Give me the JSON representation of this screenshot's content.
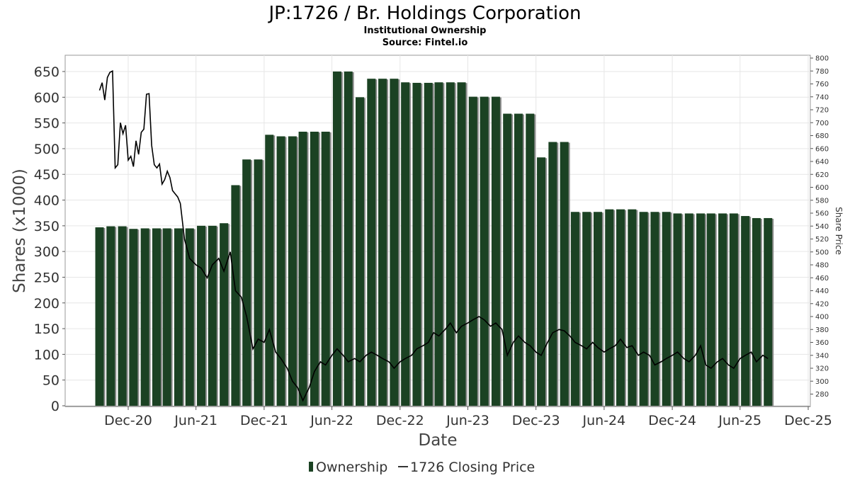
{
  "chart_data": {
    "type": "bar",
    "title": "JP:1726 / Br. Holdings Corporation",
    "subtitle": "Institutional Ownership",
    "source": "Source: Fintel.io",
    "xlabel": "Date",
    "ylabel": "Shares (x1000)",
    "y2label": "Share Price",
    "ylim": [
      0,
      650
    ],
    "y2lim": [
      260,
      800
    ],
    "grid": true,
    "legend_placement": "bottom-center",
    "yticks": [
      "0",
      "50",
      "100",
      "150",
      "200",
      "250",
      "300",
      "350",
      "400",
      "450",
      "500",
      "550",
      "600",
      "650"
    ],
    "y2ticks": [
      "280",
      "300",
      "320",
      "340",
      "360",
      "380",
      "400",
      "420",
      "440",
      "460",
      "480",
      "500",
      "520",
      "540",
      "560",
      "580",
      "600",
      "620",
      "640",
      "660",
      "680",
      "700",
      "720",
      "740",
      "760",
      "780",
      "800"
    ],
    "xticks": [
      "Dec-20",
      "Jun-21",
      "Dec-21",
      "Jun-22",
      "Dec-22",
      "Jun-23",
      "Dec-23",
      "Jun-24",
      "Dec-24",
      "Jun-25",
      "Dec-25"
    ],
    "series": [
      {
        "name": "Ownership",
        "color": "#1b4223",
        "dates": [
          "2020-09-15",
          "2020-10-15",
          "2020-11-15",
          "2020-12-15",
          "2021-01-15",
          "2021-02-15",
          "2021-03-15",
          "2021-04-15",
          "2021-05-15",
          "2021-06-15",
          "2021-07-15",
          "2021-08-15",
          "2021-09-15",
          "2021-10-15",
          "2021-11-15",
          "2021-12-15",
          "2022-01-15",
          "2022-02-15",
          "2022-03-15",
          "2022-04-15",
          "2022-05-15",
          "2022-06-15",
          "2022-07-15",
          "2022-08-15",
          "2022-09-15",
          "2022-10-15",
          "2022-11-15",
          "2022-12-15",
          "2023-01-15",
          "2023-02-15",
          "2023-03-15",
          "2023-04-15",
          "2023-05-15",
          "2023-06-15",
          "2023-07-15",
          "2023-08-15",
          "2023-09-15",
          "2023-10-15",
          "2023-11-15",
          "2023-12-15",
          "2024-01-15",
          "2024-02-15",
          "2024-03-15",
          "2024-04-15",
          "2024-05-15",
          "2024-06-15",
          "2024-07-15",
          "2024-08-15",
          "2024-09-15",
          "2024-10-15",
          "2024-11-15",
          "2024-12-15",
          "2025-01-15",
          "2025-02-15",
          "2025-03-15",
          "2025-04-15",
          "2025-05-15",
          "2025-06-15",
          "2025-07-15",
          "2025-08-15"
        ],
        "values": [
          347,
          349,
          349,
          344,
          345,
          345,
          345,
          345,
          345,
          350,
          350,
          355,
          429,
          479,
          479,
          527,
          524,
          524,
          533,
          533,
          533,
          650,
          650,
          600,
          636,
          636,
          636,
          629,
          628,
          628,
          629,
          629,
          629,
          601,
          601,
          601,
          568,
          568,
          568,
          483,
          513,
          513,
          377,
          377,
          377,
          382,
          382,
          382,
          377,
          377,
          377,
          374,
          374,
          374,
          374,
          374,
          374,
          369,
          365,
          365
        ]
      },
      {
        "name": "1726 Closing Price",
        "color": "#000000",
        "dates": [
          "2020-09-15",
          "2020-09-22",
          "2020-09-29",
          "2020-10-06",
          "2020-10-13",
          "2020-10-20",
          "2020-10-27",
          "2020-11-03",
          "2020-11-10",
          "2020-11-17",
          "2020-11-24",
          "2020-12-01",
          "2020-12-08",
          "2020-12-15",
          "2020-12-22",
          "2020-12-29",
          "2021-01-05",
          "2021-01-12",
          "2021-01-19",
          "2021-01-26",
          "2021-02-02",
          "2021-02-09",
          "2021-02-16",
          "2021-02-23",
          "2021-03-02",
          "2021-03-09",
          "2021-03-16",
          "2021-03-23",
          "2021-03-30",
          "2021-04-06",
          "2021-04-13",
          "2021-04-20",
          "2021-05-01",
          "2021-05-15",
          "2021-06-01",
          "2021-06-15",
          "2021-07-01",
          "2021-07-15",
          "2021-08-01",
          "2021-08-15",
          "2021-09-01",
          "2021-09-15",
          "2021-10-01",
          "2021-10-15",
          "2021-11-01",
          "2021-11-15",
          "2021-12-01",
          "2021-12-15",
          "2022-01-01",
          "2022-01-15",
          "2022-02-01",
          "2022-02-15",
          "2022-03-01",
          "2022-03-15",
          "2022-04-01",
          "2022-04-15",
          "2022-05-01",
          "2022-05-15",
          "2022-06-01",
          "2022-06-15",
          "2022-07-01",
          "2022-07-15",
          "2022-08-01",
          "2022-08-15",
          "2022-09-01",
          "2022-09-15",
          "2022-10-01",
          "2022-10-15",
          "2022-11-01",
          "2022-11-15",
          "2022-12-01",
          "2022-12-15",
          "2023-01-01",
          "2023-01-15",
          "2023-02-01",
          "2023-02-15",
          "2023-03-01",
          "2023-03-15",
          "2023-04-01",
          "2023-04-15",
          "2023-05-01",
          "2023-05-15",
          "2023-06-01",
          "2023-06-15",
          "2023-07-01",
          "2023-07-15",
          "2023-08-01",
          "2023-08-15",
          "2023-09-01",
          "2023-09-15",
          "2023-10-01",
          "2023-10-15",
          "2023-11-01",
          "2023-11-15",
          "2023-12-01",
          "2023-12-15",
          "2024-01-01",
          "2024-01-15",
          "2024-02-01",
          "2024-02-15",
          "2024-03-01",
          "2024-03-15",
          "2024-04-01",
          "2024-04-15",
          "2024-05-01",
          "2024-05-15",
          "2024-06-01",
          "2024-06-15",
          "2024-07-01",
          "2024-07-15",
          "2024-08-01",
          "2024-08-15",
          "2024-09-01",
          "2024-09-15",
          "2024-10-01",
          "2024-10-15",
          "2024-11-01",
          "2024-11-15",
          "2024-12-01",
          "2024-12-15",
          "2025-01-01",
          "2025-01-15",
          "2025-02-01",
          "2025-02-15",
          "2025-03-01",
          "2025-03-15",
          "2025-04-01",
          "2025-04-15",
          "2025-05-01",
          "2025-05-15",
          "2025-06-01",
          "2025-06-15",
          "2025-07-01",
          "2025-07-15",
          "2025-08-01",
          "2025-08-15"
        ],
        "values": [
          750,
          762,
          735,
          770,
          778,
          780,
          630,
          635,
          700,
          683,
          696,
          642,
          648,
          632,
          672,
          651,
          685,
          690,
          744,
          745,
          665,
          635,
          630,
          636,
          605,
          612,
          625,
          615,
          595,
          590,
          585,
          575,
          520,
          490,
          480,
          475,
          460,
          480,
          490,
          470,
          500,
          440,
          430,
          400,
          350,
          365,
          360,
          380,
          345,
          335,
          320,
          300,
          290,
          270,
          290,
          315,
          330,
          325,
          340,
          350,
          340,
          330,
          335,
          330,
          340,
          345,
          340,
          335,
          330,
          320,
          330,
          335,
          340,
          350,
          355,
          360,
          375,
          370,
          380,
          390,
          375,
          385,
          390,
          395,
          400,
          395,
          385,
          390,
          380,
          340,
          360,
          370,
          360,
          355,
          345,
          340,
          360,
          375,
          380,
          378,
          370,
          360,
          355,
          350,
          360,
          352,
          345,
          350,
          355,
          365,
          352,
          355,
          340,
          345,
          340,
          325,
          330,
          335,
          340,
          345,
          335,
          330,
          340,
          355,
          325,
          320,
          330,
          335,
          325,
          320,
          335,
          340,
          345,
          330,
          340,
          335
        ]
      }
    ]
  }
}
